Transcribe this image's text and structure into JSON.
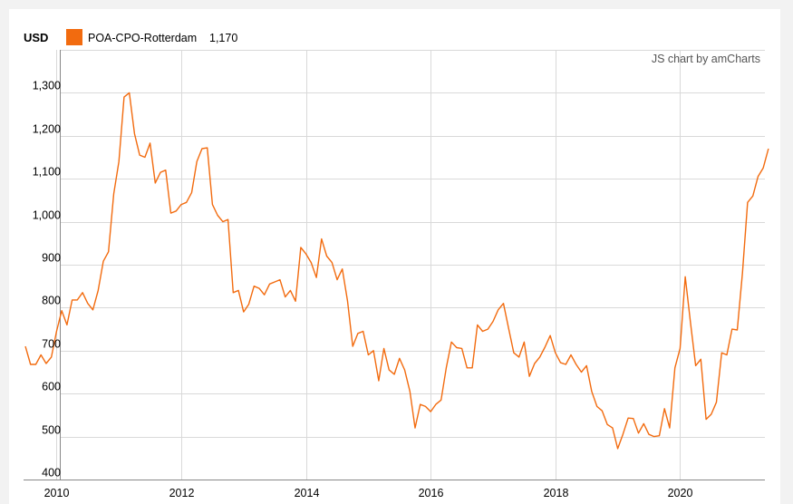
{
  "unit_label": "USD",
  "credit": "JS chart by amCharts",
  "legend": {
    "series_name": "POA-CPO-Rotterdam",
    "latest_value": "1,170"
  },
  "colors": {
    "series": "#f26b0f",
    "grid": "#d9d9d9",
    "axis": "#888888"
  },
  "chart_data": {
    "type": "line",
    "title": "",
    "xlabel": "",
    "ylabel": "USD",
    "ylim": [
      400,
      1400
    ],
    "xlim": [
      2009.5,
      2021.5
    ],
    "y_ticks": [
      "400",
      "500",
      "600",
      "700",
      "800",
      "900",
      "1,000",
      "1,100",
      "1,200",
      "1,300"
    ],
    "y_tick_values": [
      400,
      500,
      600,
      700,
      800,
      900,
      1000,
      1100,
      1200,
      1300
    ],
    "x_ticks": [
      "2010",
      "2012",
      "2014",
      "2016",
      "2018",
      "2020"
    ],
    "x_tick_values": [
      2010,
      2012,
      2014,
      2016,
      2018,
      2020
    ],
    "grid": true,
    "legend_position": "top-left",
    "series": [
      {
        "name": "POA-CPO-Rotterdam",
        "x": [
          2009.5,
          2009.583,
          2009.667,
          2009.75,
          2009.833,
          2009.917,
          2010.0,
          2010.083,
          2010.167,
          2010.25,
          2010.333,
          2010.417,
          2010.5,
          2010.583,
          2010.667,
          2010.75,
          2010.833,
          2010.917,
          2011.0,
          2011.083,
          2011.167,
          2011.25,
          2011.333,
          2011.417,
          2011.5,
          2011.583,
          2011.667,
          2011.75,
          2011.833,
          2011.917,
          2012.0,
          2012.083,
          2012.167,
          2012.25,
          2012.333,
          2012.417,
          2012.5,
          2012.583,
          2012.667,
          2012.75,
          2012.833,
          2012.917,
          2013.0,
          2013.083,
          2013.167,
          2013.25,
          2013.333,
          2013.417,
          2013.5,
          2013.583,
          2013.667,
          2013.75,
          2013.833,
          2013.917,
          2014.0,
          2014.083,
          2014.167,
          2014.25,
          2014.333,
          2014.417,
          2014.5,
          2014.583,
          2014.667,
          2014.75,
          2014.833,
          2014.917,
          2015.0,
          2015.083,
          2015.167,
          2015.25,
          2015.333,
          2015.417,
          2015.5,
          2015.583,
          2015.667,
          2015.75,
          2015.833,
          2015.917,
          2016.0,
          2016.083,
          2016.167,
          2016.25,
          2016.333,
          2016.417,
          2016.5,
          2016.583,
          2016.667,
          2016.75,
          2016.833,
          2016.917,
          2017.0,
          2017.083,
          2017.167,
          2017.25,
          2017.333,
          2017.417,
          2017.5,
          2017.583,
          2017.667,
          2017.75,
          2017.833,
          2017.917,
          2018.0,
          2018.083,
          2018.167,
          2018.25,
          2018.333,
          2018.417,
          2018.5,
          2018.583,
          2018.667,
          2018.75,
          2018.833,
          2018.917,
          2019.0,
          2019.083,
          2019.167,
          2019.25,
          2019.333,
          2019.417,
          2019.5,
          2019.583,
          2019.667,
          2019.75,
          2019.833,
          2019.917,
          2020.0,
          2020.083,
          2020.167,
          2020.25,
          2020.333,
          2020.417,
          2020.5,
          2020.583,
          2020.667,
          2020.75,
          2020.833,
          2020.917,
          2021.0,
          2021.083,
          2021.167,
          2021.25,
          2021.333,
          2021.417
        ],
        "values": [
          710,
          668,
          668,
          690,
          670,
          685,
          745,
          793,
          760,
          818,
          818,
          835,
          810,
          795,
          840,
          908,
          930,
          1065,
          1140,
          1290,
          1300,
          1205,
          1155,
          1150,
          1183,
          1090,
          1115,
          1120,
          1020,
          1025,
          1040,
          1045,
          1068,
          1140,
          1170,
          1172,
          1040,
          1015,
          1000,
          1005,
          835,
          840,
          790,
          808,
          850,
          845,
          830,
          855,
          860,
          865,
          825,
          840,
          815,
          940,
          925,
          905,
          870,
          960,
          920,
          905,
          865,
          890,
          815,
          710,
          740,
          745,
          690,
          700,
          630,
          705,
          655,
          645,
          682,
          655,
          605,
          520,
          575,
          570,
          558,
          575,
          585,
          660,
          720,
          707,
          705,
          660,
          660,
          760,
          745,
          750,
          768,
          795,
          810,
          752,
          695,
          685,
          720,
          640,
          670,
          685,
          708,
          735,
          695,
          672,
          668,
          690,
          668,
          650,
          665,
          605,
          570,
          560,
          528,
          520,
          472,
          505,
          543,
          542,
          508,
          530,
          505,
          500,
          502,
          565,
          520,
          660,
          705,
          872,
          765,
          665,
          680,
          540,
          552,
          580,
          695,
          690,
          750,
          748,
          880,
          1045,
          1060,
          1105,
          1125,
          1170
        ]
      }
    ]
  }
}
